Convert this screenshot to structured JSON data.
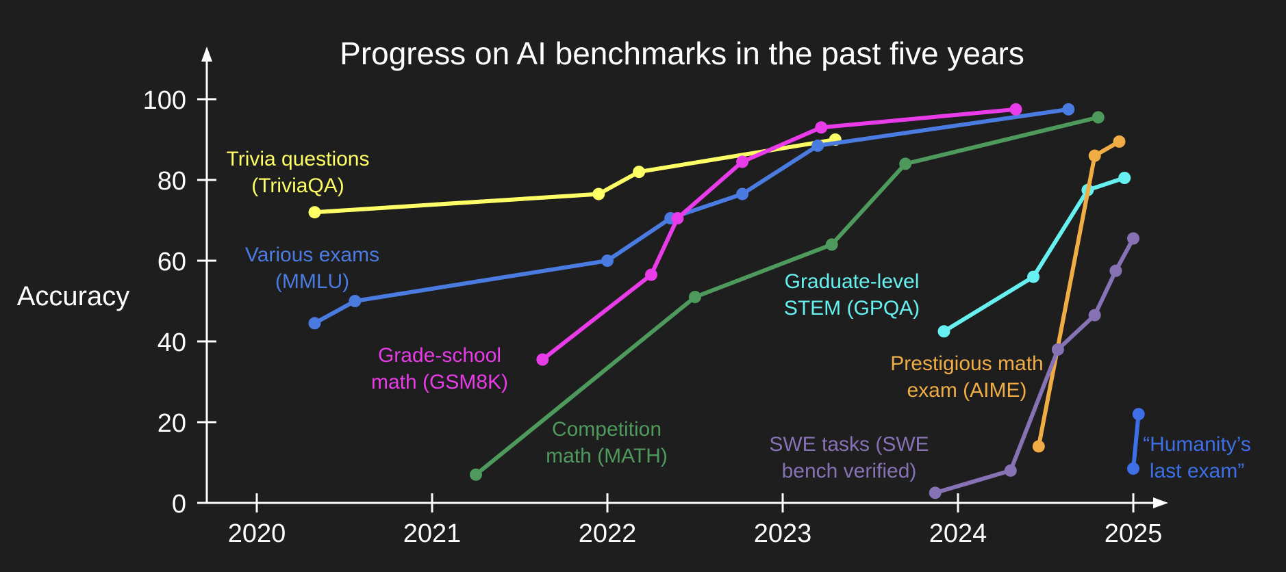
{
  "chart_data": {
    "type": "line",
    "title": "Progress on AI benchmarks in the past five years",
    "ylabel": "Accuracy",
    "xlabel": "",
    "ylim": [
      0,
      100
    ],
    "xlim": [
      2019.75,
      2025.25
    ],
    "x_ticks": [
      "2020",
      "2021",
      "2022",
      "2023",
      "2024",
      "2025"
    ],
    "y_ticks": [
      "0",
      "20",
      "40",
      "60",
      "80",
      "100"
    ],
    "grid": false,
    "legend": "none (series labeled directly on plot)",
    "series": [
      {
        "key": "triviaqa",
        "label_lines": [
          "Trivia questions",
          "(TriviaQA)"
        ],
        "color": "#ffff66",
        "points": [
          [
            2020.33,
            72
          ],
          [
            2021.95,
            76.5
          ],
          [
            2022.18,
            82
          ],
          [
            2023.3,
            90
          ]
        ]
      },
      {
        "key": "mmlu",
        "label_lines": [
          "Various exams",
          "(MMLU)"
        ],
        "color": "#4a7be0",
        "points": [
          [
            2020.33,
            44.5
          ],
          [
            2020.56,
            50
          ],
          [
            2022.0,
            60
          ],
          [
            2022.36,
            70.5
          ],
          [
            2022.77,
            76.5
          ],
          [
            2023.2,
            88.5
          ],
          [
            2024.63,
            97.5
          ]
        ]
      },
      {
        "key": "gsm8k",
        "label_lines": [
          "Grade-school",
          "math (GSM8K)"
        ],
        "color": "#e83ce8",
        "points": [
          [
            2021.63,
            35.5
          ],
          [
            2022.25,
            56.5
          ],
          [
            2022.4,
            70.5
          ],
          [
            2022.77,
            84.5
          ],
          [
            2023.22,
            93
          ],
          [
            2024.33,
            97.5
          ]
        ]
      },
      {
        "key": "math",
        "label_lines": [
          "Competition",
          "math (MATH)"
        ],
        "color": "#4e9a5c",
        "points": [
          [
            2021.25,
            7
          ],
          [
            2022.5,
            51
          ],
          [
            2023.28,
            64
          ],
          [
            2023.7,
            84
          ],
          [
            2024.8,
            95.5
          ]
        ]
      },
      {
        "key": "gpqa",
        "label_lines": [
          "Graduate-level",
          "STEM (GPQA)"
        ],
        "color": "#66f0f0",
        "points": [
          [
            2023.92,
            42.5
          ],
          [
            2024.43,
            56
          ],
          [
            2024.74,
            77.5
          ],
          [
            2024.95,
            80.5
          ]
        ]
      },
      {
        "key": "aime",
        "label_lines": [
          "Prestigious math",
          "exam (AIME)"
        ],
        "color": "#f0ad45",
        "points": [
          [
            2024.46,
            14
          ],
          [
            2024.78,
            86
          ],
          [
            2024.92,
            89.5
          ]
        ]
      },
      {
        "key": "swe",
        "label_lines": [
          "SWE tasks (SWE",
          "bench verified)"
        ],
        "color": "#8672b4",
        "points": [
          [
            2023.87,
            2.5
          ],
          [
            2024.3,
            8
          ],
          [
            2024.57,
            38
          ],
          [
            2024.78,
            46.5
          ],
          [
            2024.9,
            57.5
          ],
          [
            2025.0,
            65.5
          ]
        ]
      },
      {
        "key": "hle",
        "label_lines": [
          "“Humanity’s",
          "last exam”"
        ],
        "color": "#3d6fe6",
        "points": [
          [
            2025.0,
            8.5
          ],
          [
            2025.03,
            22
          ]
        ]
      }
    ]
  }
}
